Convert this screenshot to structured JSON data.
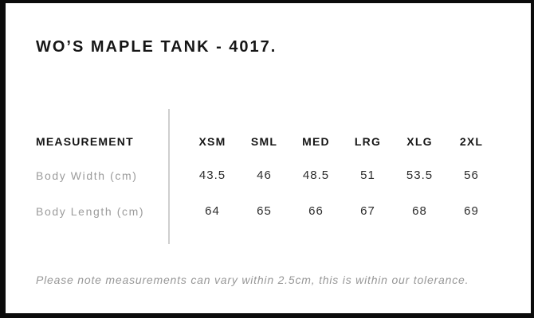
{
  "chart_data": {
    "type": "table",
    "title": "WO’S MAPLE TANK - 4017.",
    "header": [
      "MEASUREMENT",
      "XSM",
      "SML",
      "MED",
      "LRG",
      "XLG",
      "2XL"
    ],
    "rows": [
      {
        "label": "Body Width (cm)",
        "values": [
          43.5,
          46,
          48.5,
          51,
          53.5,
          56
        ]
      },
      {
        "label": "Body Length (cm)",
        "values": [
          64,
          65,
          66,
          67,
          68,
          69
        ]
      }
    ],
    "note": "Please note measurements can vary within 2.5cm, this is within our tolerance.",
    "layout_hints": {
      "label_column_divider_x": 211,
      "grid": "off",
      "value_alignment": "center"
    }
  },
  "colors": {
    "frame_border": "#0b0b0b",
    "heading_text": "#161616",
    "row_label_text": "#9b9b9b",
    "value_text": "#2d2d2d",
    "note_text": "#979797",
    "divider": "#cfcfcf",
    "background": "#ffffff"
  }
}
